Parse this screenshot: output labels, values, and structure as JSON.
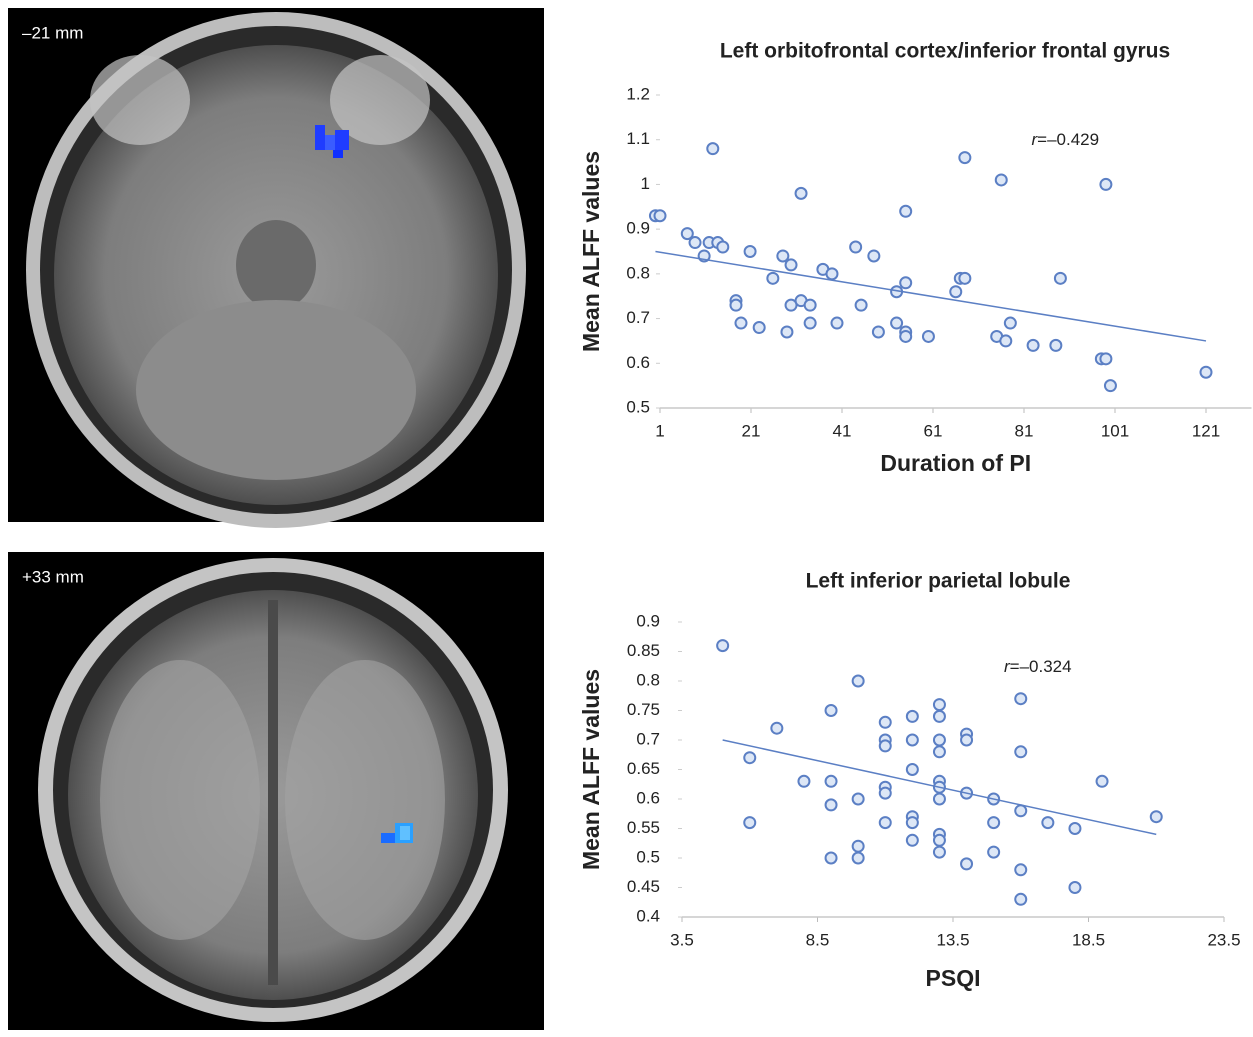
{
  "images": [
    {
      "label": "–21 mm"
    },
    {
      "label": "+33 mm"
    }
  ],
  "chart_data": [
    {
      "type": "scatter",
      "title": "Left orbitofrontal cortex/inferior frontal gyrus",
      "x_label": "Duration of PI",
      "y_label": "Mean ALFF values",
      "annotation": "r=–0.429",
      "color": "#5b7fc4",
      "xlim": [
        1,
        131
      ],
      "xticks": [
        1,
        21,
        41,
        61,
        81,
        101,
        121
      ],
      "ylim": [
        0.5,
        1.2
      ],
      "yticks": [
        0.5,
        0.6,
        0.7,
        0.8,
        0.9,
        1,
        1.1,
        1.2
      ],
      "x": [
        0,
        1,
        7,
        8.7,
        10.7,
        11.8,
        12.6,
        13.7,
        14.8,
        17.7,
        17.7,
        18.8,
        20.8,
        22.8,
        25.8,
        28,
        28.9,
        29.8,
        29.8,
        32,
        32,
        34,
        34,
        36.8,
        38.8,
        39.9,
        44,
        45.2,
        48,
        49,
        53,
        53,
        55,
        55,
        55,
        55,
        60,
        66,
        67,
        68,
        68,
        75,
        76,
        77,
        78,
        83,
        88,
        89,
        98,
        99,
        99,
        100,
        121
      ],
      "values": [
        0.93,
        0.93,
        0.89,
        0.87,
        0.84,
        0.87,
        1.08,
        0.87,
        0.86,
        0.74,
        0.73,
        0.69,
        0.85,
        0.68,
        0.79,
        0.84,
        0.67,
        0.82,
        0.73,
        0.98,
        0.74,
        0.73,
        0.69,
        0.81,
        0.8,
        0.69,
        0.86,
        0.73,
        0.84,
        0.67,
        0.76,
        0.69,
        0.94,
        0.78,
        0.67,
        0.66,
        0.66,
        0.76,
        0.79,
        0.79,
        1.06,
        0.66,
        1.01,
        0.65,
        0.69,
        0.64,
        0.64,
        0.79,
        0.61,
        0.61,
        1.0,
        0.55,
        0.58
      ],
      "trendline": {
        "x": [
          0,
          121
        ],
        "y": [
          0.85,
          0.65
        ]
      }
    },
    {
      "type": "scatter",
      "title": "Left inferior parietal lobule",
      "x_label": "PSQI",
      "y_label": "Mean ALFF values",
      "annotation": "r=–0.324",
      "color": "#5b7fc4",
      "xlim": [
        3.5,
        23.5
      ],
      "xticks": [
        3.5,
        8.5,
        13.5,
        18.5,
        23.5
      ],
      "ylim": [
        0.4,
        0.9
      ],
      "yticks": [
        0.4,
        0.45,
        0.5,
        0.55,
        0.6,
        0.65,
        0.7,
        0.75,
        0.8,
        0.85,
        0.9
      ],
      "x": [
        5,
        6,
        6,
        7,
        8,
        9,
        9,
        9,
        9,
        10,
        10,
        10,
        10,
        11,
        11,
        11,
        11,
        11,
        11,
        12,
        12,
        12,
        12,
        12,
        12,
        13,
        13,
        13,
        13,
        13,
        13,
        13,
        13,
        13,
        13,
        14,
        14,
        14,
        14,
        15,
        15,
        15,
        16,
        16,
        16,
        16,
        16,
        17,
        18,
        18,
        19,
        21
      ],
      "values": [
        0.86,
        0.67,
        0.56,
        0.72,
        0.63,
        0.75,
        0.63,
        0.59,
        0.5,
        0.8,
        0.6,
        0.52,
        0.5,
        0.73,
        0.7,
        0.69,
        0.62,
        0.61,
        0.56,
        0.74,
        0.7,
        0.65,
        0.57,
        0.56,
        0.53,
        0.76,
        0.74,
        0.7,
        0.68,
        0.63,
        0.62,
        0.6,
        0.54,
        0.53,
        0.51,
        0.71,
        0.7,
        0.61,
        0.49,
        0.6,
        0.56,
        0.51,
        0.77,
        0.68,
        0.58,
        0.48,
        0.43,
        0.56,
        0.55,
        0.45,
        0.63,
        0.57
      ],
      "trendline": {
        "x": [
          5,
          21
        ],
        "y": [
          0.7,
          0.54
        ]
      }
    }
  ]
}
